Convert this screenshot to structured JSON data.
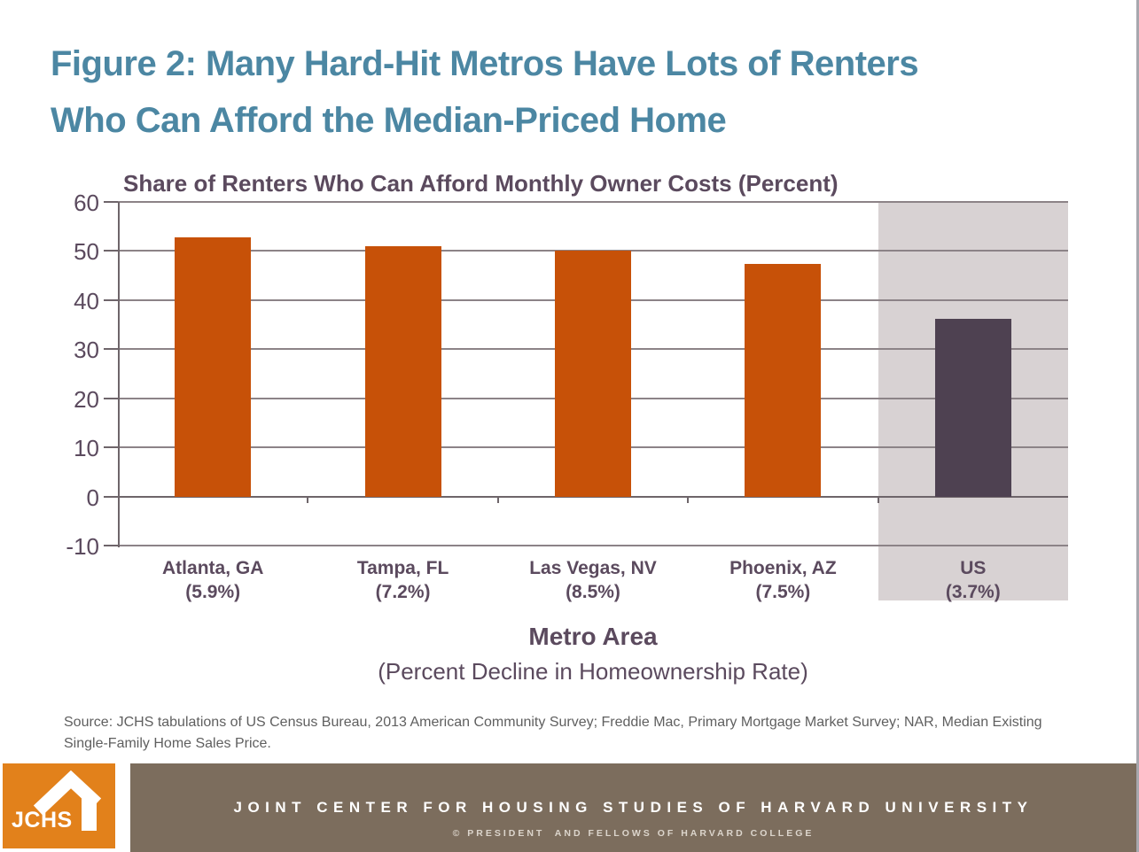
{
  "header": {
    "title_line1": "Figure 2: Many Hard-Hit Metros Have Lots of Renters",
    "title_line2": "Who Can Afford the Median-Priced Home"
  },
  "chart_data": {
    "type": "bar",
    "title": "Share of Renters Who Can Afford Monthly Owner Costs (Percent)",
    "categories": [
      "Atlanta, GA",
      "Tampa, FL",
      "Las Vegas, NV",
      "Phoenix, AZ",
      "US"
    ],
    "category_sublabels": [
      "(5.9%)",
      "(7.2%)",
      "(8.5%)",
      "(7.5%)",
      "(3.7%)"
    ],
    "values": [
      52.8,
      51.0,
      50.0,
      47.3,
      36.2
    ],
    "xlabel": "Metro Area",
    "xlabel_sub": "(Percent Decline in Homeownership Rate)",
    "ylim": [
      -10,
      60
    ],
    "yticks": [
      60,
      50,
      40,
      30,
      20,
      10,
      0,
      -10
    ],
    "grid": true,
    "legend": false,
    "bar_color": "#C75108",
    "highlight": {
      "index": 4,
      "bar_color": "#4E4151",
      "band_color": "#D8D2D3"
    }
  },
  "source_note": "Source: JCHS tabulations of US Census Bureau, 2013 American Community Survey; Freddie Mac, Primary Mortgage Market Survey; NAR, Median Existing Single-Family Home Sales Price.",
  "footer": {
    "logo_text": "JCHS",
    "org_line": "JOINT CENTER FOR HOUSING STUDIES OF HARVARD UNIVERSITY",
    "copyright_line": "© PRESIDENT  AND FELLOWS OF HARVARD COLLEGE"
  },
  "theme": {
    "title_teal": "#4C87A3",
    "text_purple": "#5B4A5E",
    "gridline_gray": "#8C8387",
    "axis_gray": "#6E656A",
    "footer_brown": "#7C6D5D",
    "logo_orange": "#E2811B"
  }
}
